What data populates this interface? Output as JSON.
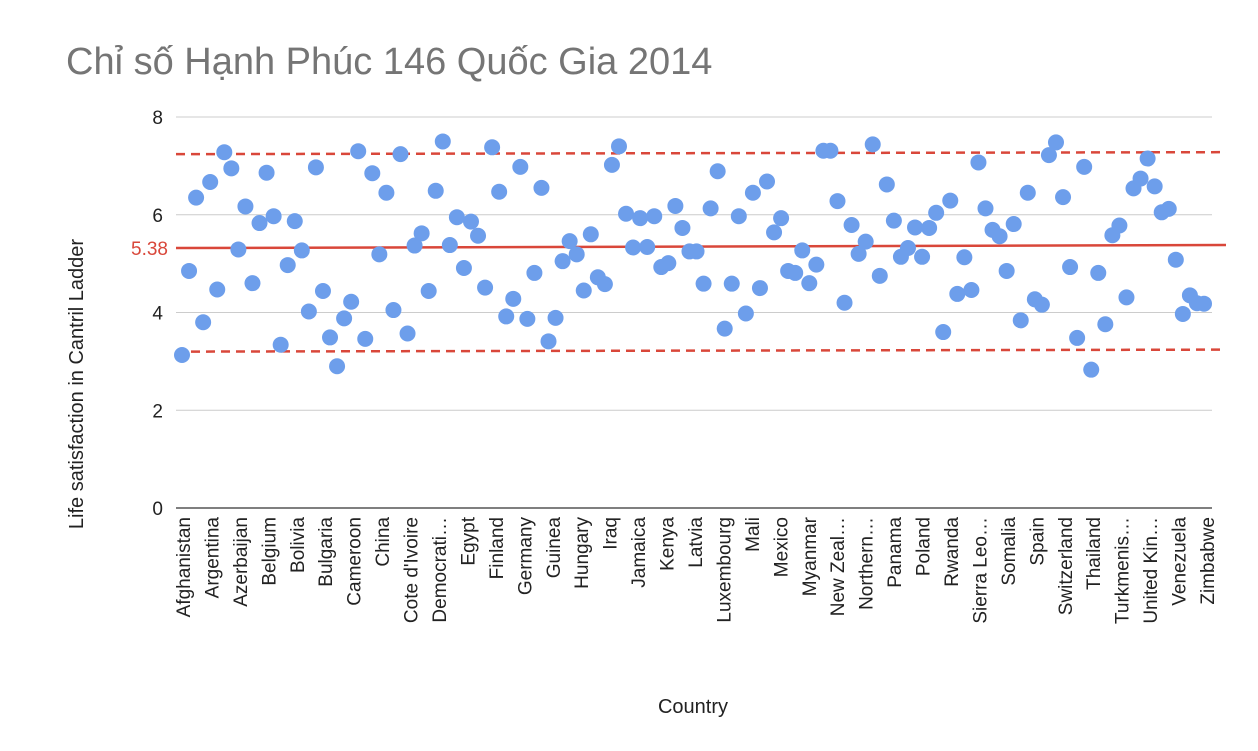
{
  "chart_data": {
    "type": "scatter",
    "title": "Chỉ số Hạnh Phúc 146 Quốc Gia 2014",
    "xlabel": "Country",
    "ylabel": "Life satisfaction in Cantril Ladder",
    "ylim": [
      0,
      8
    ],
    "yticks": [
      0,
      2,
      4,
      6,
      8
    ],
    "grid": true,
    "legend": "none",
    "categories": [
      "Afghanistan",
      "Argentina",
      "Azerbaijan",
      "Belgium",
      "Bolivia",
      "Bulgaria",
      "Cameroon",
      "China",
      "Cote d'Ivoire",
      "Democrati…",
      "Egypt",
      "Finland",
      "Germany",
      "Guinea",
      "Hungary",
      "Iraq",
      "Jamaica",
      "Kenya",
      "Latvia",
      "Luxembourg",
      "Mali",
      "Mexico",
      "Myanmar",
      "New Zeal…",
      "Northern…",
      "Panama",
      "Poland",
      "Rwanda",
      "Sierra Leo…",
      "Somalia",
      "Spain",
      "Switzerland",
      "Thailand",
      "Turkmenis…",
      "United Kin…",
      "Venezuela",
      "Zimbabwe"
    ],
    "point_count": 146,
    "values": [
      3.13,
      4.85,
      6.35,
      3.8,
      6.67,
      4.47,
      7.28,
      6.95,
      5.29,
      6.17,
      4.6,
      5.83,
      6.86,
      5.97,
      3.34,
      4.97,
      5.87,
      5.27,
      4.02,
      6.97,
      4.44,
      3.49,
      2.9,
      3.88,
      4.22,
      7.3,
      3.46,
      6.85,
      5.19,
      6.45,
      4.05,
      7.24,
      3.57,
      5.37,
      5.62,
      4.44,
      6.49,
      7.5,
      5.38,
      5.95,
      4.91,
      5.86,
      5.57,
      4.51,
      7.38,
      6.47,
      3.92,
      4.28,
      6.98,
      3.87,
      4.81,
      6.55,
      3.41,
      3.89,
      5.05,
      5.46,
      5.19,
      4.45,
      5.6,
      4.72,
      4.58,
      7.02,
      7.4,
      6.02,
      5.33,
      5.93,
      5.34,
      5.97,
      4.93,
      5.01,
      6.18,
      5.73,
      5.25,
      5.25,
      4.59,
      6.13,
      6.89,
      3.67,
      4.59,
      5.97,
      3.98,
      6.45,
      4.5,
      6.68,
      5.64,
      5.93,
      4.85,
      4.81,
      5.27,
      4.6,
      4.98,
      7.31,
      7.31,
      6.28,
      4.2,
      5.79,
      5.2,
      5.45,
      7.44,
      4.75,
      6.62,
      5.88,
      5.14,
      5.32,
      5.74,
      5.14,
      5.73,
      6.04,
      3.6,
      6.29,
      4.38,
      5.13,
      4.46,
      7.07,
      6.13,
      5.69,
      5.56,
      4.85,
      5.81,
      3.84,
      6.45,
      4.27,
      4.16,
      7.22,
      7.48,
      6.36,
      4.93,
      3.48,
      6.98,
      2.83,
      4.81,
      3.76,
      5.58,
      5.78,
      4.31,
      6.54,
      6.74,
      7.15,
      6.58,
      6.05,
      6.12,
      5.08,
      3.97,
      4.35,
      4.19,
      4.18
    ],
    "reference_lines": {
      "mean": 5.38,
      "mean_label": "5.38",
      "upper": 7.26,
      "lower": 3.22
    },
    "colors": {
      "point": "#6d9eeb",
      "mean_line": "#d9473a",
      "band_line": "#d9473a",
      "grid": "#cccccc",
      "title": "#757575"
    }
  }
}
